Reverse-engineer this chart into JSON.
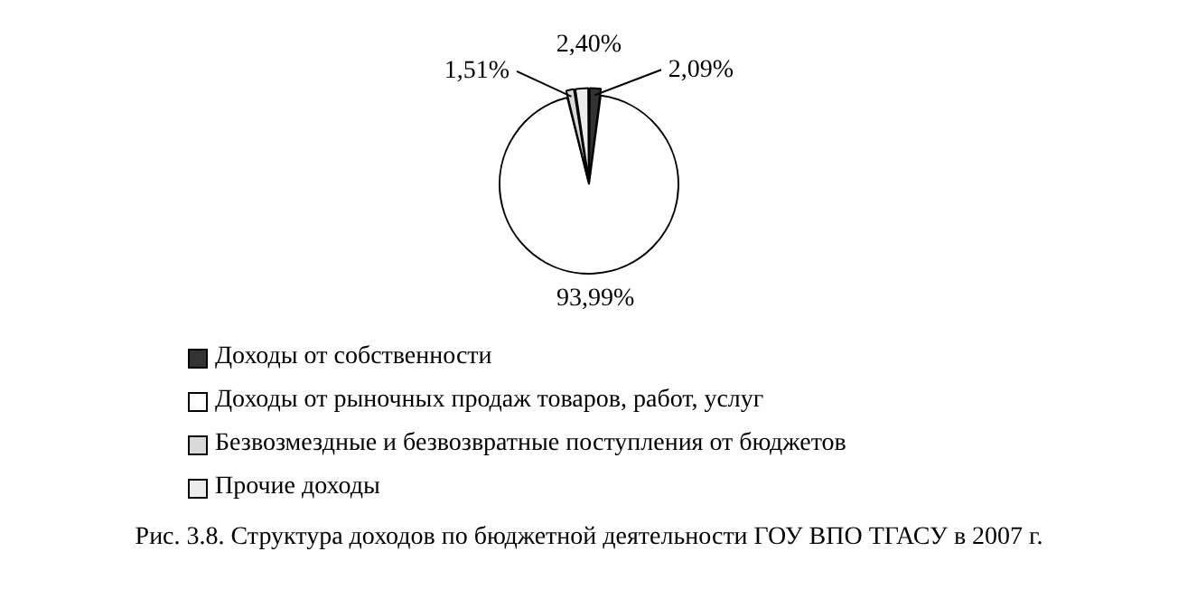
{
  "chart_data": {
    "type": "pie",
    "title": "Рис. 3.8. Структура доходов по бюджетной деятельности ГОУ ВПО ТГАСУ в 2007 г.",
    "categories": [
      "Доходы от собственности",
      "Доходы от рыночных продаж товаров, работ, услуг",
      "Безвозмездные и безвозвратные поступления от бюджетов",
      "Прочие доходы"
    ],
    "values": [
      2.09,
      93.99,
      1.51,
      2.4
    ],
    "value_labels": [
      "2,09%",
      "93,99%",
      "1,51%",
      "2,40%"
    ],
    "colors": [
      "#333333",
      "#ffffff",
      "#d9d9d9",
      "#ececec"
    ],
    "legend": "bottom"
  }
}
